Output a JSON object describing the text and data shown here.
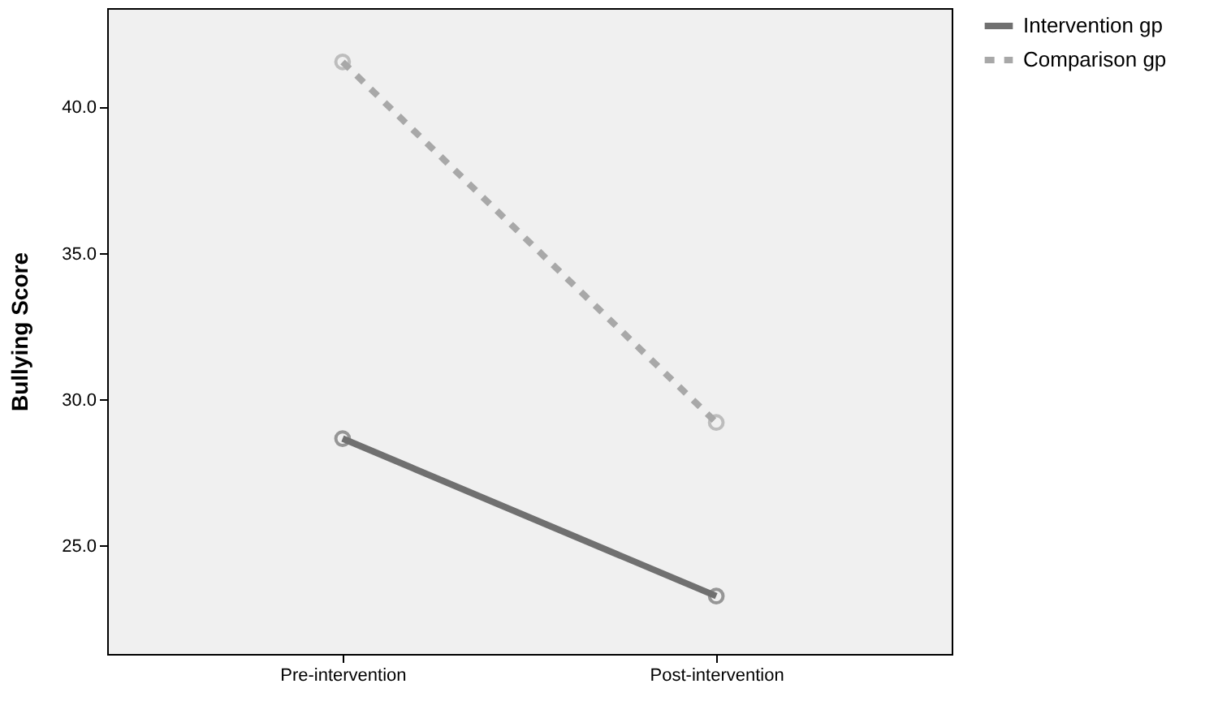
{
  "chart_data": {
    "type": "line",
    "ylabel": "Bullying Score",
    "categories": [
      "Pre-intervention",
      "Post-intervention"
    ],
    "series": [
      {
        "name": "Intervention gp",
        "color": "#707070",
        "values": [
          28.67,
          23.28
        ],
        "line_style": "solid"
      },
      {
        "name": "Comparison gp",
        "color": "#a8a8a8",
        "values": [
          41.56,
          29.22
        ],
        "line_style": "dashed"
      }
    ],
    "ylim": [
      21.3,
      43.4
    ],
    "yticks": [
      {
        "value": 25,
        "label": "25.0"
      },
      {
        "value": 30,
        "label": "30.0"
      },
      {
        "value": 35,
        "label": "35.0"
      },
      {
        "value": 40,
        "label": "40.0"
      }
    ],
    "grid": false,
    "legend": "top right",
    "marker": "circle"
  }
}
